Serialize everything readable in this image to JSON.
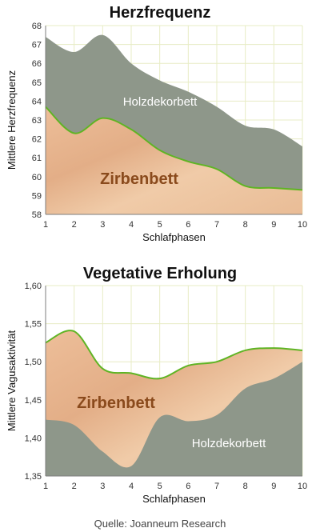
{
  "chart_data": [
    {
      "type": "area",
      "title": "Herzfrequenz",
      "xlabel": "Schlafphasen",
      "ylabel": "Mittlere Herzfrequenz",
      "x": [
        1,
        2,
        3,
        4,
        5,
        6,
        7,
        8,
        9,
        10
      ],
      "xticks": [
        "1",
        "2",
        "3",
        "4",
        "5",
        "6",
        "7",
        "8",
        "9",
        "10"
      ],
      "ylim": [
        58,
        68
      ],
      "yticks": [
        "58",
        "59",
        "60",
        "61",
        "62",
        "63",
        "64",
        "65",
        "66",
        "67",
        "68"
      ],
      "grid": true,
      "series": [
        {
          "name": "Holzdekorbett",
          "values": [
            67.4,
            66.6,
            67.5,
            66.0,
            65.1,
            64.5,
            63.7,
            62.7,
            62.5,
            61.6
          ],
          "color": "#8e978a"
        },
        {
          "name": "Zirbenbett",
          "values": [
            63.7,
            62.3,
            63.1,
            62.5,
            61.4,
            60.8,
            60.4,
            59.5,
            59.4,
            59.3
          ],
          "color": "#e6b896"
        }
      ],
      "line_color": "#5fb424"
    },
    {
      "type": "area",
      "title": "Vegetative Erholung",
      "xlabel": "Schlafphasen",
      "ylabel": "Mittlere Vagusaktivität",
      "x": [
        1,
        2,
        3,
        4,
        5,
        6,
        7,
        8,
        9,
        10
      ],
      "xticks": [
        "1",
        "2",
        "3",
        "4",
        "5",
        "6",
        "7",
        "8",
        "9",
        "10"
      ],
      "ylim": [
        1.35,
        1.6
      ],
      "yticks": [
        "1,35",
        "1,40",
        "1,45",
        "1,50",
        "1,55",
        "1,60"
      ],
      "grid": true,
      "series": [
        {
          "name": "Zirbenbett",
          "values": [
            1.525,
            1.54,
            1.491,
            1.485,
            1.478,
            1.495,
            1.5,
            1.515,
            1.518,
            1.515
          ],
          "color": "#e6b896"
        },
        {
          "name": "Holzdekorbett",
          "values": [
            1.424,
            1.417,
            1.382,
            1.363,
            1.427,
            1.422,
            1.43,
            1.465,
            1.478,
            1.5
          ],
          "color": "#8e978a"
        }
      ],
      "line_color": "#5fb424"
    }
  ],
  "source": "Quelle: Joanneum Research",
  "colors": {
    "grid": "#e7ecc4",
    "axis": "#7d7d7d",
    "zirben_text": "#8a4a1c",
    "holz_text": "#ffffff"
  }
}
